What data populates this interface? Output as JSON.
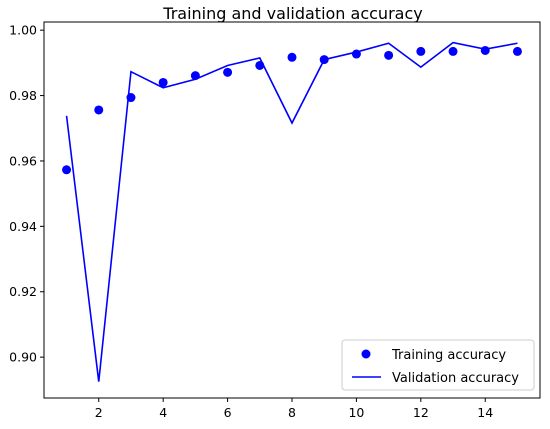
{
  "chart_data": {
    "type": "line",
    "title": "Training and validation accuracy",
    "xlabel": "",
    "ylabel": "",
    "xlim": [
      0.3,
      15.7
    ],
    "ylim": [
      0.8875,
      1.0025
    ],
    "x_ticks": [
      2,
      4,
      6,
      8,
      10,
      12,
      14
    ],
    "y_ticks": [
      0.9,
      0.92,
      0.94,
      0.96,
      0.98,
      1.0
    ],
    "y_tick_labels": [
      "0.90",
      "0.92",
      "0.94",
      "0.96",
      "0.98",
      "1.00"
    ],
    "x": [
      1,
      2,
      3,
      4,
      5,
      6,
      7,
      8,
      9,
      10,
      11,
      12,
      13,
      14,
      15
    ],
    "series": [
      {
        "name": "Training accuracy",
        "style": "points",
        "color": "#0000ff",
        "values": [
          0.9573,
          0.9756,
          0.9794,
          0.984,
          0.9861,
          0.9871,
          0.9892,
          0.9917,
          0.991,
          0.9927,
          0.9923,
          0.9935,
          0.9935,
          0.9938,
          0.9935
        ]
      },
      {
        "name": "Validation accuracy",
        "style": "line",
        "color": "#0000ff",
        "values": [
          0.9738,
          0.8925,
          0.9873,
          0.9824,
          0.985,
          0.9892,
          0.9915,
          0.9716,
          0.991,
          0.9933,
          0.996,
          0.9887,
          0.9962,
          0.9942,
          0.996
        ]
      }
    ],
    "grid": false,
    "legend_position": "lower-right"
  }
}
